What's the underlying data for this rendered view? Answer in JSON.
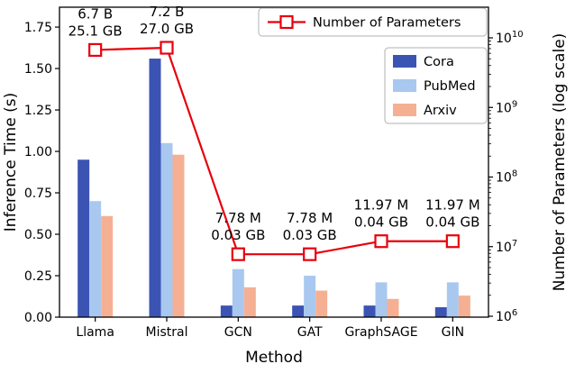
{
  "chart_data": {
    "type": "bar+line",
    "title": "",
    "xlabel": "Method",
    "ylabel_left": "Inference Time (s)",
    "ylabel_right": "Number of Parameters (log scale)",
    "categories": [
      "Llama",
      "Mistral",
      "GCN",
      "GAT",
      "GraphSAGE",
      "GIN"
    ],
    "bar_series": [
      {
        "name": "Cora",
        "color": "#3b54b3",
        "values": [
          0.95,
          1.56,
          0.07,
          0.07,
          0.07,
          0.06
        ]
      },
      {
        "name": "PubMed",
        "color": "#a9c8ef",
        "values": [
          0.7,
          1.05,
          0.29,
          0.25,
          0.21,
          0.21
        ]
      },
      {
        "name": "Arxiv",
        "color": "#f5b093",
        "values": [
          0.61,
          0.98,
          0.18,
          0.16,
          0.11,
          0.13
        ]
      }
    ],
    "line_series": {
      "name": "Number of Parameters",
      "color": "#e8000b",
      "values": [
        6700000000,
        7200000000,
        7780000,
        7780000,
        11970000,
        11970000
      ]
    },
    "annotations": [
      {
        "params": "6.7 B",
        "memory": "25.1 GB"
      },
      {
        "params": "7.2 B",
        "memory": "27.0 GB"
      },
      {
        "params": "7.78 M",
        "memory": "0.03 GB"
      },
      {
        "params": "7.78 M",
        "memory": "0.03 GB"
      },
      {
        "params": "11.97 M",
        "memory": "0.04 GB"
      },
      {
        "params": "11.97 M",
        "memory": "0.04 GB"
      }
    ],
    "left_axis": {
      "tick_labels": [
        "0.00",
        "0.25",
        "0.50",
        "0.75",
        "1.00",
        "1.25",
        "1.50",
        "1.75"
      ],
      "min": 0,
      "max": 1.87
    },
    "right_axis": {
      "scale": "log",
      "tick_exponents": [
        6,
        7,
        8,
        9,
        10
      ]
    }
  }
}
